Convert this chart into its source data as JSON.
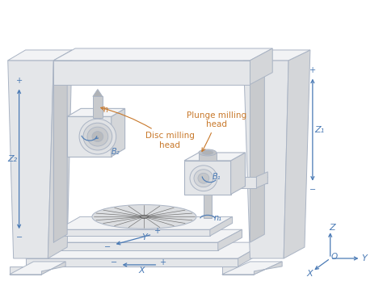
{
  "bg_color": "#ffffff",
  "line_color": "#aab4c4",
  "blue_arrow_color": "#4a7ab5",
  "orange_label_color": "#c8782a",
  "labels": {
    "Z2": "Z₂",
    "Z1": "Z₁",
    "B2": "B₂",
    "B1": "B₁",
    "n1": "n₁",
    "n2": "n",
    "X": "X",
    "Y": "Y",
    "Z": "Z",
    "O": "O",
    "plunge": "Plunge milling\nhead",
    "disc": "Disc milling\nhead"
  },
  "face_light": "#f2f3f5",
  "face_mid": "#e4e6e9",
  "face_dark": "#d4d6d9",
  "face_darker": "#c8cacd"
}
